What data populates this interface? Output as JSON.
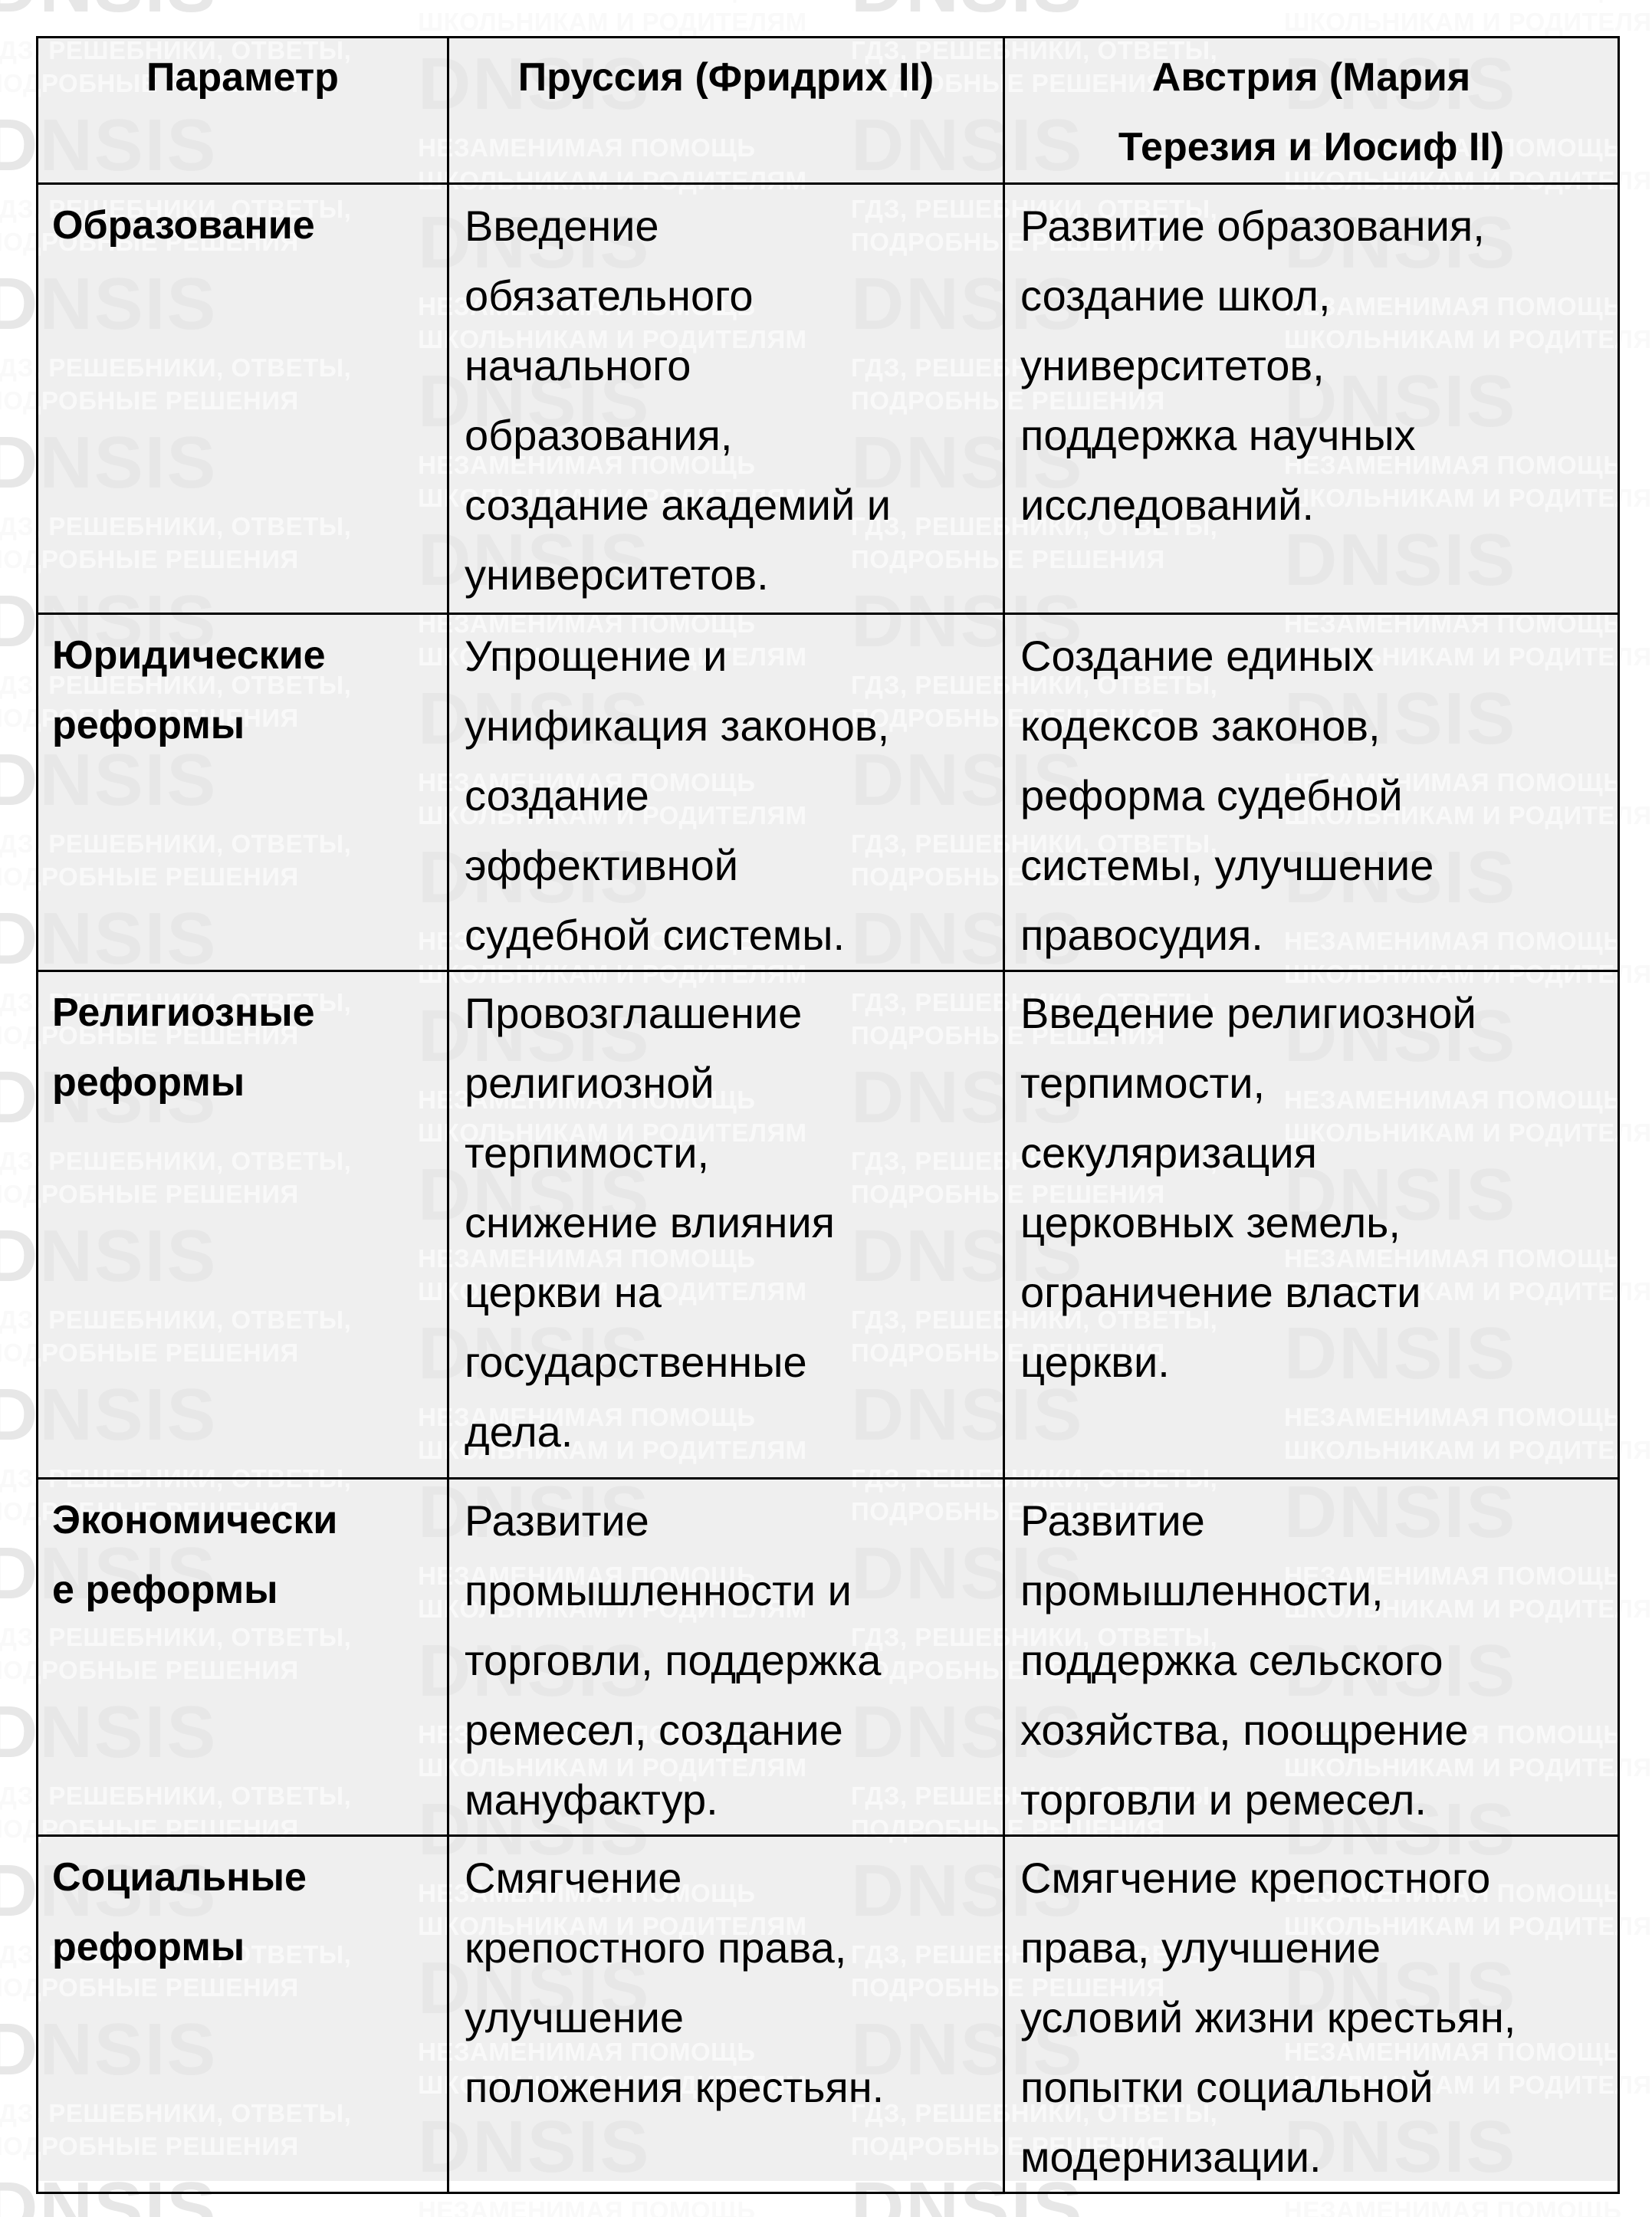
{
  "watermark": {
    "brand": "DNSIS",
    "caption_a_line1": "ГДЗ, РЕШЕБНИКИ, ОТВЕТЫ,",
    "caption_a_line2": "ПОДРОБНЫЕ РЕШЕНИЯ",
    "caption_b_line1": "НЕЗАМЕНИМАЯ ПОМОЩЬ",
    "caption_b_line2": "ШКОЛЬНИКАМ И РОДИТЕЛЯМ"
  },
  "colors": {
    "cell_background": "#efefef",
    "border": "#000000",
    "text": "#000000",
    "watermark_brand": "#e7e7e7",
    "watermark_caption": "#f9f9f9"
  },
  "table": {
    "headers": {
      "parameter": "Параметр",
      "prussia": "Пруссия (Фридрих II)",
      "austria": "Австрия (Мария\nТерезия и Иосиф II)"
    },
    "rows": [
      {
        "parameter": "Образование",
        "prussia": "Введение\nобязательного\nначального\nобразования,\nсоздание академий и\nуниверситетов.",
        "austria": "Развитие образования,\nсоздание школ,\nуниверситетов,\nподдержка научных\nисследований."
      },
      {
        "parameter": "Юридические\nреформы",
        "prussia": "Упрощение и\nунификация законов,\nсоздание\nэффективной\nсудебной системы.",
        "austria": "Создание единых\nкодексов законов,\nреформа судебной\nсистемы, улучшение\nправосудия."
      },
      {
        "parameter": "Религиозные\nреформы",
        "prussia": "Провозглашение\nрелигиозной\nтерпимости,\nснижение влияния\nцеркви на\nгосударственные\nдела.",
        "austria": "Введение религиозной\nтерпимости,\nсекуляризация\nцерковных земель,\nограничение власти\nцеркви."
      },
      {
        "parameter": "Экономически\nе реформы",
        "prussia": "Развитие\nпромышленности и\nторговли, поддержка\nремесел, создание\nмануфактур.",
        "austria": "Развитие\nпромышленности,\nподдержка сельского\nхозяйства, поощрение\nторговли и ремесел."
      },
      {
        "parameter": "Социальные\nреформы",
        "prussia": "Смягчение\nкрепостного права,\nулучшение\nположения крестьян.",
        "austria": "Смягчение крепостного\nправа, улучшение\nусловий жизни крестьян,\nпопытки социальной\nмодернизации."
      }
    ]
  }
}
